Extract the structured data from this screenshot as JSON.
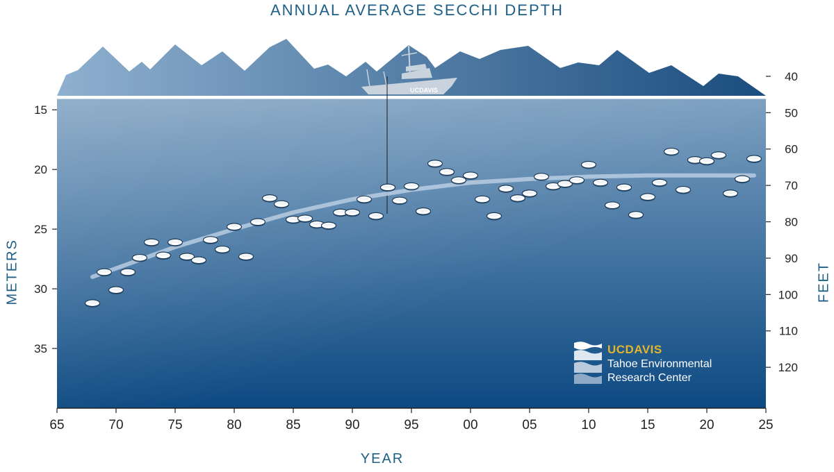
{
  "title": "ANNUAL AVERAGE SECCHI DEPTH",
  "logo": {
    "brand": "UCDAVIS",
    "line1": "Tahoe Environmental",
    "line2": "Research Center",
    "boat_text": "UCDAVIS"
  },
  "colors": {
    "title": "#1d5f86",
    "water_top": "#7b9fc0",
    "water_bottom": "#0d4a82",
    "mountains_left": "#8fb0cf",
    "mountains_right": "#1a4d7e",
    "trend": "#b7cde2",
    "brand_gold": "#e3b52b"
  },
  "chart_data": {
    "type": "scatter",
    "title": "ANNUAL AVERAGE SECCHI DEPTH",
    "xlabel": "YEAR",
    "ylabel_left": "METERS",
    "ylabel_right": "FEET",
    "xlim": [
      1965,
      2025
    ],
    "ylim_meters": [
      14,
      40
    ],
    "y_inverted": true,
    "x_ticks": [
      1965,
      1970,
      1975,
      1980,
      1985,
      1990,
      1995,
      2000,
      2005,
      2010,
      2015,
      2020,
      2025
    ],
    "x_tick_labels": [
      "65",
      "70",
      "75",
      "80",
      "85",
      "90",
      "95",
      "00",
      "05",
      "10",
      "15",
      "20",
      "25"
    ],
    "y_ticks_meters": [
      15,
      20,
      25,
      30,
      35
    ],
    "y_ticks_feet": [
      40,
      50,
      60,
      70,
      80,
      90,
      100,
      110,
      120
    ],
    "grid": false,
    "series": [
      {
        "values": [
          [
            1968,
            31.2
          ],
          [
            1969,
            28.6
          ],
          [
            1970,
            30.1
          ],
          [
            1971,
            28.6
          ],
          [
            1972,
            27.4
          ],
          [
            1973,
            26.1
          ],
          [
            1974,
            27.2
          ],
          [
            1975,
            26.1
          ],
          [
            1976,
            27.3
          ],
          [
            1977,
            27.6
          ],
          [
            1978,
            25.9
          ],
          [
            1979,
            26.7
          ],
          [
            1980,
            24.8
          ],
          [
            1981,
            27.3
          ],
          [
            1982,
            24.4
          ],
          [
            1983,
            22.4
          ],
          [
            1984,
            22.9
          ],
          [
            1985,
            24.2
          ],
          [
            1986,
            24.1
          ],
          [
            1987,
            24.6
          ],
          [
            1988,
            24.7
          ],
          [
            1989,
            23.6
          ],
          [
            1990,
            23.6
          ],
          [
            1991,
            22.5
          ],
          [
            1992,
            23.9
          ],
          [
            1993,
            21.5
          ],
          [
            1994,
            22.6
          ],
          [
            1995,
            21.4
          ],
          [
            1996,
            23.5
          ],
          [
            1997,
            19.5
          ],
          [
            1998,
            20.2
          ],
          [
            1999,
            20.9
          ],
          [
            2000,
            20.5
          ],
          [
            2001,
            22.5
          ],
          [
            2002,
            23.9
          ],
          [
            2003,
            21.6
          ],
          [
            2004,
            22.4
          ],
          [
            2005,
            22.0
          ],
          [
            2006,
            20.6
          ],
          [
            2007,
            21.4
          ],
          [
            2008,
            21.2
          ],
          [
            2009,
            20.9
          ],
          [
            2010,
            19.6
          ],
          [
            2011,
            21.1
          ],
          [
            2012,
            23.0
          ],
          [
            2013,
            21.5
          ],
          [
            2014,
            23.8
          ],
          [
            2015,
            22.3
          ],
          [
            2016,
            21.1
          ],
          [
            2017,
            18.5
          ],
          [
            2018,
            21.7
          ],
          [
            2019,
            19.2
          ],
          [
            2020,
            19.3
          ],
          [
            2021,
            18.8
          ],
          [
            2022,
            22.0
          ],
          [
            2023,
            20.8
          ],
          [
            2024,
            19.1
          ]
        ]
      }
    ],
    "trend_line": [
      [
        1968,
        29.0
      ],
      [
        1975,
        26.5
      ],
      [
        1980,
        25.0
      ],
      [
        1985,
        23.6
      ],
      [
        1990,
        22.5
      ],
      [
        1995,
        21.7
      ],
      [
        2000,
        21.1
      ],
      [
        2005,
        20.8
      ],
      [
        2010,
        20.6
      ],
      [
        2015,
        20.5
      ],
      [
        2020,
        20.5
      ],
      [
        2024,
        20.5
      ]
    ]
  }
}
